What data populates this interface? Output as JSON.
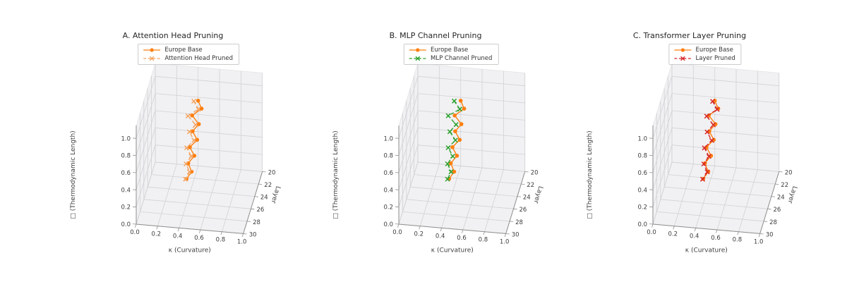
{
  "figure": {
    "background": "#ffffff"
  },
  "chart_data": [
    {
      "type": "line",
      "projection": "3d",
      "title": "A. Attention Head Pruning",
      "xlabel": "κ (Curvature)",
      "ylabel": "Layer",
      "zlabel": "□ (Thermodynamic Length)",
      "xlim": [
        0,
        1
      ],
      "ylim": [
        20,
        30
      ],
      "zlim": [
        0,
        1.15
      ],
      "xticks": [
        0,
        0.2,
        0.4,
        0.6,
        0.8,
        1.0
      ],
      "yticks": [
        20,
        22,
        24,
        26,
        28,
        30
      ],
      "zticks": [
        0,
        0.2,
        0.4,
        0.6,
        0.8,
        1.0
      ],
      "layers": [
        20,
        21,
        22,
        23,
        24,
        25,
        26,
        27,
        28,
        29,
        30
      ],
      "series": [
        {
          "name": "Europe Base",
          "color": "#ff7f0e",
          "marker": "circle",
          "linestyle": "solid",
          "kappa": [
            0.4,
            0.45,
            0.38,
            0.46,
            0.42,
            0.48,
            0.43,
            0.49,
            0.45,
            0.5,
            0.47
          ],
          "L": [
            0.76,
            0.745,
            0.73,
            0.71,
            0.695,
            0.675,
            0.655,
            0.635,
            0.615,
            0.595,
            0.58
          ]
        },
        {
          "name": "Attention Head Pruned",
          "color": "#f4a460",
          "marker": "x",
          "linestyle": "dashed",
          "kappa": [
            0.36,
            0.42,
            0.34,
            0.43,
            0.39,
            0.45,
            0.4,
            0.46,
            0.43,
            0.48,
            0.46
          ],
          "L": [
            0.75,
            0.735,
            0.72,
            0.7,
            0.685,
            0.665,
            0.645,
            0.625,
            0.605,
            0.59,
            0.575
          ]
        }
      ]
    },
    {
      "type": "line",
      "projection": "3d",
      "title": "B. MLP Channel Pruning",
      "xlabel": "κ (Curvature)",
      "ylabel": "Layer",
      "zlabel": "□ (Thermodynamic Length)",
      "xlim": [
        0,
        1
      ],
      "ylim": [
        20,
        30
      ],
      "zlim": [
        0,
        1.15
      ],
      "xticks": [
        0,
        0.2,
        0.4,
        0.6,
        0.8,
        1.0
      ],
      "yticks": [
        20,
        22,
        24,
        26,
        28,
        30
      ],
      "zticks": [
        0,
        0.2,
        0.4,
        0.6,
        0.8,
        1.0
      ],
      "layers": [
        20,
        21,
        22,
        23,
        24,
        25,
        26,
        27,
        28,
        29,
        30
      ],
      "series": [
        {
          "name": "Europe Base",
          "color": "#ff7f0e",
          "marker": "circle",
          "linestyle": "solid",
          "kappa": [
            0.4,
            0.45,
            0.38,
            0.46,
            0.42,
            0.48,
            0.43,
            0.49,
            0.45,
            0.5,
            0.47
          ],
          "L": [
            0.76,
            0.745,
            0.73,
            0.71,
            0.695,
            0.675,
            0.655,
            0.635,
            0.615,
            0.595,
            0.58
          ]
        },
        {
          "name": "MLP Channel Pruned",
          "color": "#2ca02c",
          "marker": "x",
          "linestyle": "dashed",
          "kappa": [
            0.34,
            0.41,
            0.32,
            0.41,
            0.37,
            0.44,
            0.39,
            0.45,
            0.42,
            0.47,
            0.455
          ],
          "L": [
            0.75,
            0.735,
            0.72,
            0.7,
            0.685,
            0.665,
            0.645,
            0.625,
            0.605,
            0.59,
            0.575
          ]
        }
      ]
    },
    {
      "type": "line",
      "projection": "3d",
      "title": "C. Transformer Layer Pruning",
      "xlabel": "κ (Curvature)",
      "ylabel": "Layer",
      "zlabel": "□ (Thermodynamic Length)",
      "xlim": [
        0,
        1
      ],
      "ylim": [
        20,
        30
      ],
      "zlim": [
        0,
        1.15
      ],
      "xticks": [
        0,
        0.2,
        0.4,
        0.6,
        0.8,
        1.0
      ],
      "yticks": [
        20,
        22,
        24,
        26,
        28,
        30
      ],
      "zticks": [
        0,
        0.2,
        0.4,
        0.6,
        0.8,
        1.0
      ],
      "layers": [
        20,
        21,
        22,
        23,
        24,
        25,
        26,
        27,
        28,
        29,
        30
      ],
      "series": [
        {
          "name": "Europe Base",
          "color": "#ff7f0e",
          "marker": "circle",
          "linestyle": "solid",
          "kappa": [
            0.4,
            0.45,
            0.38,
            0.46,
            0.42,
            0.48,
            0.43,
            0.49,
            0.45,
            0.5,
            0.47
          ],
          "L": [
            0.76,
            0.745,
            0.73,
            0.71,
            0.695,
            0.675,
            0.655,
            0.635,
            0.615,
            0.595,
            0.58
          ]
        },
        {
          "name": "Layer Pruned",
          "color": "#d62728",
          "marker": "x",
          "linestyle": "dashed",
          "kappa": [
            0.38,
            0.44,
            0.36,
            0.44,
            0.4,
            0.46,
            0.41,
            0.47,
            0.44,
            0.49,
            0.465
          ],
          "L": [
            0.75,
            0.735,
            0.72,
            0.7,
            0.685,
            0.665,
            0.645,
            0.625,
            0.605,
            0.59,
            0.575
          ]
        }
      ]
    }
  ]
}
